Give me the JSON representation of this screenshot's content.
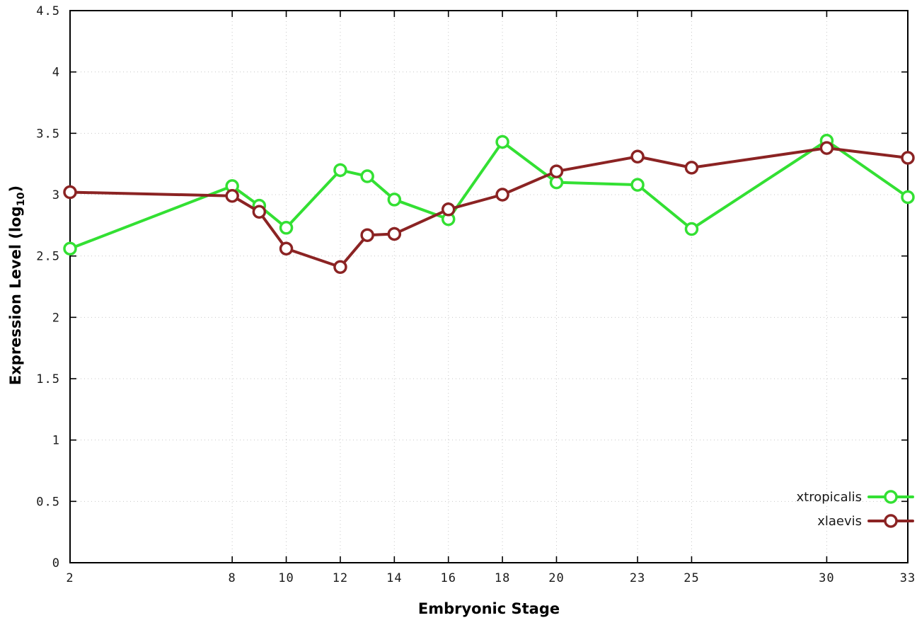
{
  "chart_data": {
    "type": "line",
    "title": "",
    "xlabel": "Embryonic Stage",
    "ylabel": {
      "main": "Expression Level (log",
      "sub": "10",
      "suffix": ")"
    },
    "xlim": [
      2,
      33
    ],
    "ylim": [
      0,
      4.5
    ],
    "xticks": [
      2,
      8,
      10,
      12,
      14,
      16,
      18,
      20,
      23,
      25,
      30,
      33
    ],
    "xtick_labels": [
      "2",
      "8",
      "10",
      "12",
      "14",
      "16",
      "18",
      "20",
      "23",
      "25",
      "30",
      "33"
    ],
    "yticks": [
      0,
      0.5,
      1,
      1.5,
      2,
      2.5,
      3,
      3.5,
      4,
      4.5
    ],
    "ytick_labels": [
      "0",
      "0.5",
      "1",
      "1.5",
      "2",
      "2.5",
      "3",
      "3.5",
      "4",
      "4.5"
    ],
    "x": [
      2,
      8,
      9,
      10,
      12,
      13,
      14,
      16,
      18,
      20,
      23,
      25,
      30,
      33
    ],
    "series": [
      {
        "name": "xtropicalis",
        "color": "#33e033",
        "values": [
          2.56,
          3.07,
          2.91,
          2.73,
          3.2,
          3.15,
          2.96,
          2.8,
          3.43,
          3.1,
          3.08,
          2.72,
          3.44,
          2.98
        ]
      },
      {
        "name": "xlaevis",
        "color": "#8b2323",
        "values": [
          3.02,
          2.99,
          2.86,
          2.56,
          2.41,
          2.67,
          2.68,
          2.88,
          3.0,
          3.19,
          3.31,
          3.22,
          3.38,
          3.3
        ]
      }
    ],
    "grid": true,
    "legend_position": "bottom-right",
    "background": "#ffffff",
    "grid_color": "#c8c8c8",
    "axis_color": "#000000",
    "tick_label_color": "#1a1a1a"
  }
}
